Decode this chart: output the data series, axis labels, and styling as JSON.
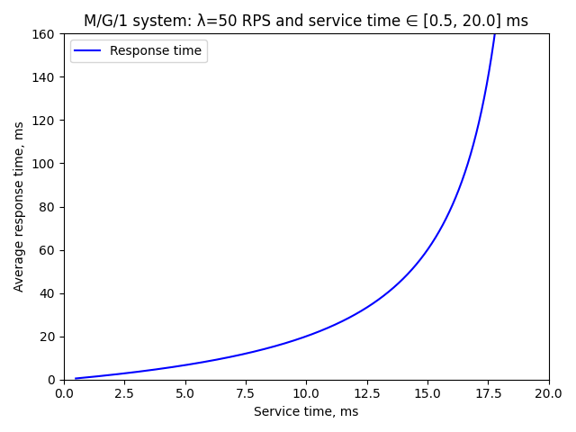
{
  "title": "M/G/1 system: λ=50 RPS and service time ∈ [0.5, 20.0] ms",
  "xlabel": "Service time, ms",
  "ylabel": "Average response time, ms",
  "legend_label": "Response time",
  "lambda_rps": 50,
  "service_time_min": 0.5,
  "service_time_max": 20.0,
  "n_points": 2000,
  "line_color": "blue",
  "line_width": 1.5,
  "xlim": [
    0,
    20
  ],
  "ylim": [
    0,
    160
  ],
  "figsize": [
    6.4,
    4.8
  ],
  "dpi": 100,
  "cs2": 1.0
}
